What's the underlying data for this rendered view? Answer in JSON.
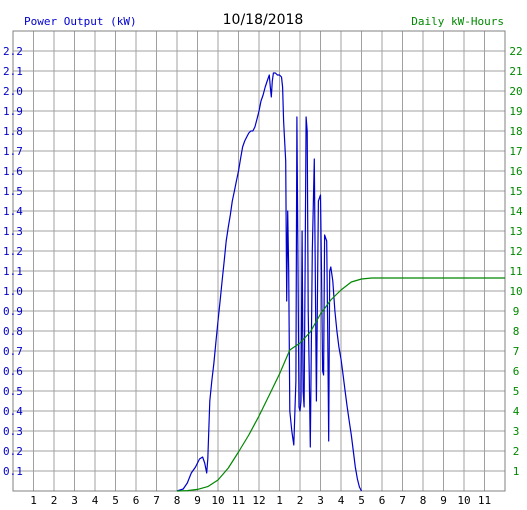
{
  "chart_data": {
    "type": "line",
    "title": "10/18/2018",
    "left_axis_label": "Power Output (kW)",
    "right_axis_label": "Daily kW-Hours",
    "x_ticks": [
      "1",
      "2",
      "3",
      "4",
      "5",
      "6",
      "7",
      "8",
      "9",
      "10",
      "11",
      "12",
      "1",
      "2",
      "3",
      "4",
      "5",
      "6",
      "7",
      "8",
      "9",
      "10",
      "11"
    ],
    "x_range_hours": [
      0,
      24
    ],
    "y_left_ticks": [
      "0.1",
      "0.2",
      "0.3",
      "0.4",
      "0.5",
      "0.6",
      "0.7",
      "0.8",
      "0.9",
      "1.0",
      "1.1",
      "1.2",
      "1.3",
      "1.4",
      "1.5",
      "1.6",
      "1.7",
      "1.8",
      "1.9",
      "2.0",
      "2.1",
      "2.2"
    ],
    "y_left_range": [
      0,
      2.3
    ],
    "y_right_ticks": [
      "1",
      "2",
      "3",
      "4",
      "5",
      "6",
      "7",
      "8",
      "9",
      "10",
      "11",
      "12",
      "13",
      "14",
      "15",
      "16",
      "17",
      "18",
      "19",
      "20",
      "21",
      "22"
    ],
    "y_right_range": [
      0,
      23
    ],
    "grid": true,
    "colors": {
      "power": "#0000cc",
      "energy": "#008800",
      "grid": "#a0a0a0",
      "left_axis_text": "#0000cc",
      "right_axis_text": "#008800"
    },
    "series": [
      {
        "name": "Power Output (kW)",
        "axis": "left",
        "points": [
          [
            8.0,
            0
          ],
          [
            8.3,
            0.01
          ],
          [
            8.5,
            0.04
          ],
          [
            8.7,
            0.09
          ],
          [
            8.9,
            0.12
          ],
          [
            9.1,
            0.16
          ],
          [
            9.25,
            0.17
          ],
          [
            9.35,
            0.14
          ],
          [
            9.45,
            0.09
          ],
          [
            9.5,
            0.16
          ],
          [
            9.6,
            0.45
          ],
          [
            9.7,
            0.55
          ],
          [
            9.8,
            0.64
          ],
          [
            9.9,
            0.75
          ],
          [
            10.0,
            0.85
          ],
          [
            10.1,
            0.95
          ],
          [
            10.2,
            1.05
          ],
          [
            10.3,
            1.15
          ],
          [
            10.4,
            1.25
          ],
          [
            10.5,
            1.32
          ],
          [
            10.6,
            1.38
          ],
          [
            10.7,
            1.45
          ],
          [
            10.8,
            1.5
          ],
          [
            10.9,
            1.55
          ],
          [
            11.0,
            1.6
          ],
          [
            11.1,
            1.66
          ],
          [
            11.2,
            1.72
          ],
          [
            11.3,
            1.75
          ],
          [
            11.4,
            1.77
          ],
          [
            11.5,
            1.79
          ],
          [
            11.6,
            1.8
          ],
          [
            11.7,
            1.8
          ],
          [
            11.8,
            1.82
          ],
          [
            11.9,
            1.86
          ],
          [
            12.0,
            1.9
          ],
          [
            12.1,
            1.95
          ],
          [
            12.2,
            1.98
          ],
          [
            12.3,
            2.02
          ],
          [
            12.4,
            2.05
          ],
          [
            12.5,
            2.08
          ],
          [
            12.55,
            2.02
          ],
          [
            12.6,
            1.97
          ],
          [
            12.65,
            2.05
          ],
          [
            12.7,
            2.09
          ],
          [
            12.8,
            2.09
          ],
          [
            12.9,
            2.08
          ],
          [
            13.0,
            2.08
          ],
          [
            13.1,
            2.07
          ],
          [
            13.15,
            2.02
          ],
          [
            13.2,
            1.85
          ],
          [
            13.3,
            1.65
          ],
          [
            13.35,
            0.95
          ],
          [
            13.4,
            1.4
          ],
          [
            13.45,
            1.1
          ],
          [
            13.5,
            0.4
          ],
          [
            13.6,
            0.3
          ],
          [
            13.7,
            0.23
          ],
          [
            13.8,
            0.55
          ],
          [
            13.85,
            1.87
          ],
          [
            13.95,
            0.42
          ],
          [
            14.0,
            0.4
          ],
          [
            14.05,
            0.45
          ],
          [
            14.1,
            1.3
          ],
          [
            14.15,
            0.5
          ],
          [
            14.2,
            0.42
          ],
          [
            14.25,
            1.1
          ],
          [
            14.3,
            1.87
          ],
          [
            14.35,
            1.8
          ],
          [
            14.4,
            0.9
          ],
          [
            14.45,
            0.6
          ],
          [
            14.5,
            0.22
          ],
          [
            14.6,
            1.2
          ],
          [
            14.7,
            1.66
          ],
          [
            14.8,
            0.45
          ],
          [
            14.9,
            1.45
          ],
          [
            15.0,
            1.48
          ],
          [
            15.05,
            1.1
          ],
          [
            15.1,
            0.6
          ],
          [
            15.15,
            0.58
          ],
          [
            15.2,
            1.28
          ],
          [
            15.3,
            1.25
          ],
          [
            15.35,
            0.8
          ],
          [
            15.4,
            0.25
          ],
          [
            15.45,
            1.1
          ],
          [
            15.5,
            1.12
          ],
          [
            15.6,
            1.05
          ],
          [
            15.7,
            0.9
          ],
          [
            15.8,
            0.8
          ],
          [
            15.9,
            0.72
          ],
          [
            16.0,
            0.66
          ],
          [
            16.1,
            0.58
          ],
          [
            16.2,
            0.5
          ],
          [
            16.3,
            0.42
          ],
          [
            16.4,
            0.35
          ],
          [
            16.5,
            0.28
          ],
          [
            16.6,
            0.2
          ],
          [
            16.7,
            0.12
          ],
          [
            16.8,
            0.06
          ],
          [
            16.9,
            0.02
          ],
          [
            17.0,
            0.0
          ]
        ]
      },
      {
        "name": "Daily kW-Hours",
        "axis": "right",
        "points": [
          [
            8.0,
            0
          ],
          [
            8.5,
            0.02
          ],
          [
            9.0,
            0.08
          ],
          [
            9.5,
            0.22
          ],
          [
            10.0,
            0.55
          ],
          [
            10.5,
            1.15
          ],
          [
            11.0,
            1.95
          ],
          [
            11.5,
            2.8
          ],
          [
            12.0,
            3.75
          ],
          [
            12.5,
            4.8
          ],
          [
            13.0,
            5.85
          ],
          [
            13.5,
            7.05
          ],
          [
            14.0,
            7.4
          ],
          [
            14.5,
            7.95
          ],
          [
            15.0,
            8.85
          ],
          [
            15.5,
            9.55
          ],
          [
            16.0,
            10.05
          ],
          [
            16.5,
            10.45
          ],
          [
            17.0,
            10.6
          ],
          [
            17.5,
            10.65
          ],
          [
            18.0,
            10.65
          ],
          [
            19.0,
            10.65
          ],
          [
            20.0,
            10.65
          ],
          [
            21.0,
            10.65
          ],
          [
            22.0,
            10.65
          ],
          [
            23.0,
            10.65
          ],
          [
            24.0,
            10.65
          ]
        ]
      }
    ]
  }
}
